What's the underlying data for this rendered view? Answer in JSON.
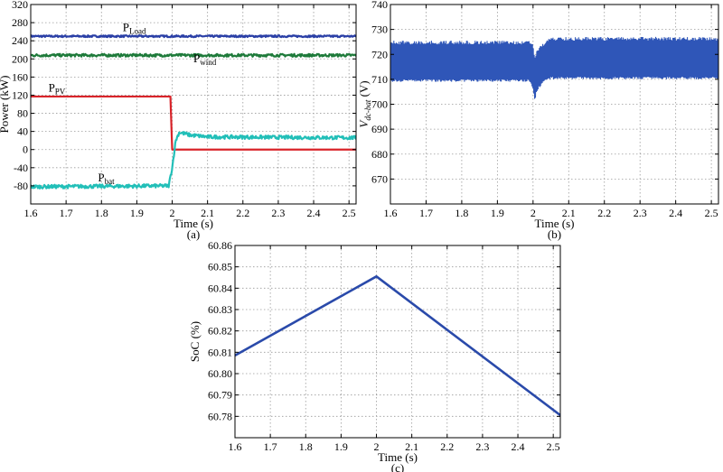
{
  "chart_data": [
    {
      "id": "a",
      "type": "line",
      "caption": "(a)",
      "xlabel": "Time (s)",
      "ylabel": "Power (kW)",
      "xlim": [
        1.6,
        2.52
      ],
      "ylim": [
        -120,
        320
      ],
      "xticks": [
        1.6,
        1.7,
        1.8,
        1.9,
        2,
        2.1,
        2.2,
        2.3,
        2.4,
        2.5
      ],
      "yticks": [
        -80,
        -40,
        0,
        40,
        80,
        120,
        160,
        200,
        240,
        280,
        320
      ],
      "grid": true,
      "series": [
        {
          "name": "P",
          "sub": "Load",
          "color": "#2a3fa6",
          "x": [
            1.6,
            2.52
          ],
          "y": [
            250,
            250
          ],
          "noise": 2,
          "label_pos": [
            1.86,
            261
          ]
        },
        {
          "name": "P",
          "sub": "wind",
          "color": "#1e7a3a",
          "x": [
            1.6,
            2.52
          ],
          "y": [
            208,
            208
          ],
          "noise": 3,
          "label_pos": [
            2.06,
            193
          ]
        },
        {
          "name": "P",
          "sub": "PV",
          "color": "#d9242a",
          "x": [
            1.6,
            1.995,
            2.0,
            2.52
          ],
          "y": [
            117,
            117,
            0,
            0
          ],
          "noise": 0,
          "label_pos": [
            1.65,
            128
          ]
        },
        {
          "name": "P",
          "sub": "bat",
          "color": "#22bfb8",
          "x": [
            1.6,
            1.99,
            2.0,
            2.01,
            2.02,
            2.05,
            2.1,
            2.52
          ],
          "y": [
            -82,
            -80,
            -40,
            20,
            38,
            32,
            28,
            26
          ],
          "noise": 4,
          "label_pos": [
            1.79,
            -70
          ]
        }
      ]
    },
    {
      "id": "b",
      "type": "line",
      "caption": "(b)",
      "xlabel": "Time (s)",
      "ylabel_main": "V",
      "ylabel_sub": "dc-bat",
      "ylabel_unit": " (V)",
      "xlim": [
        1.6,
        2.52
      ],
      "ylim": [
        660,
        740
      ],
      "xticks": [
        1.6,
        1.7,
        1.8,
        1.9,
        2,
        2.1,
        2.2,
        2.3,
        2.4,
        2.5
      ],
      "yticks": [
        670,
        680,
        690,
        700,
        710,
        720,
        730,
        740
      ],
      "grid": true,
      "series": [
        {
          "color": "#2f56b8",
          "band_x": [
            1.6,
            1.99,
            2.0,
            2.005,
            2.01,
            2.03,
            2.05,
            2.52
          ],
          "upper": [
            725.5,
            725.5,
            724,
            719,
            722,
            725,
            727,
            727
          ],
          "lower": [
            709,
            709,
            706,
            701,
            705,
            709,
            710,
            710
          ]
        }
      ]
    },
    {
      "id": "c",
      "type": "line",
      "caption": "(c)",
      "xlabel": "Time (s)",
      "ylabel": "SoC (%)",
      "xlim": [
        1.6,
        2.52
      ],
      "ylim": [
        60.77,
        60.86
      ],
      "xticks": [
        1.6,
        1.7,
        1.8,
        1.9,
        2,
        2.1,
        2.2,
        2.3,
        2.4,
        2.5
      ],
      "yticks": [
        60.77,
        60.78,
        60.79,
        60.8,
        60.81,
        60.82,
        60.83,
        60.84,
        60.85,
        60.86
      ],
      "ytick_labels": [
        "",
        "60.78",
        "60.79",
        "60.80",
        "60.81",
        "60.82",
        "60.83",
        "60.84",
        "60.85",
        "60.86"
      ],
      "grid": true,
      "series": [
        {
          "color": "#2a4aaa",
          "x": [
            1.6,
            2.0,
            2.52
          ],
          "y": [
            60.8085,
            60.8455,
            60.7805
          ]
        }
      ]
    }
  ]
}
